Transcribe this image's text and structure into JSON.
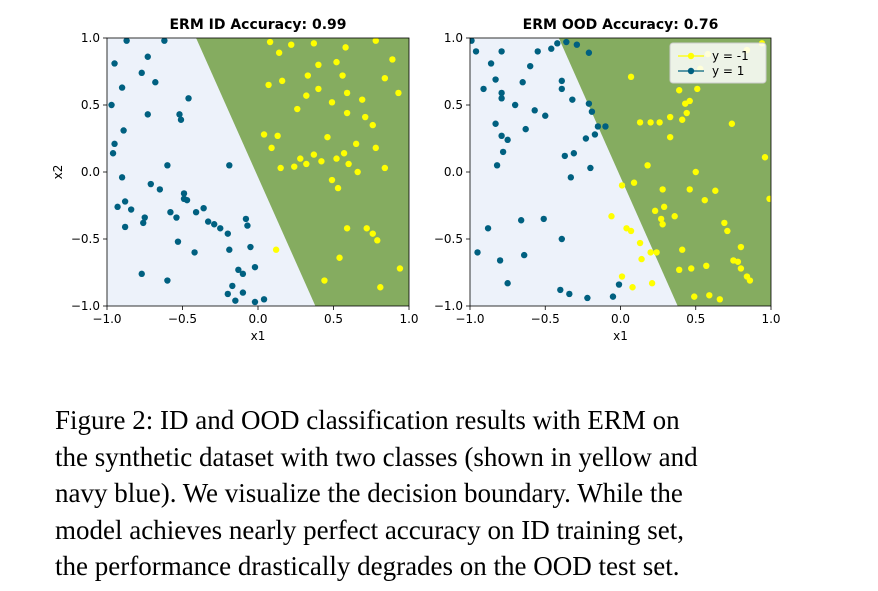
{
  "chart_data": [
    {
      "type": "scatter",
      "title": "ERM ID Accuracy: 0.99",
      "xlabel": "x1",
      "ylabel": "x2",
      "xlim": [
        -1.0,
        1.0
      ],
      "ylim": [
        -1.0,
        1.0
      ],
      "xticks": [
        "−1.0",
        "−0.5",
        "0.0",
        "0.5",
        "1.0"
      ],
      "yticks": [
        "1.0",
        "0.5",
        "0.0",
        "−0.5",
        "−1.0"
      ],
      "region_colors": {
        "y1": "#edf2fa",
        "y_neg1": "#85ac60"
      },
      "boundary": [
        [
          -0.41,
          1.0
        ],
        [
          0.38,
          -1.0
        ]
      ],
      "series": [
        {
          "color": "#ffff00",
          "points": [
            [
              0.08,
              0.97
            ],
            [
              0.22,
              0.95
            ],
            [
              0.37,
              0.96
            ],
            [
              0.58,
              0.93
            ],
            [
              0.78,
              0.98
            ],
            [
              0.14,
              0.89
            ],
            [
              0.4,
              0.8
            ],
            [
              0.52,
              0.82
            ],
            [
              0.56,
              0.72
            ],
            [
              0.84,
              0.7
            ],
            [
              0.93,
              0.59
            ],
            [
              0.89,
              0.84
            ],
            [
              0.07,
              0.65
            ],
            [
              0.16,
              0.68
            ],
            [
              0.33,
              0.72
            ],
            [
              0.4,
              0.62
            ],
            [
              0.59,
              0.59
            ],
            [
              0.69,
              0.54
            ],
            [
              0.32,
              0.57
            ],
            [
              0.49,
              0.52
            ],
            [
              0.26,
              0.47
            ],
            [
              0.59,
              0.44
            ],
            [
              0.71,
              0.41
            ],
            [
              0.76,
              0.35
            ],
            [
              0.04,
              0.28
            ],
            [
              0.13,
              0.27
            ],
            [
              0.46,
              0.26
            ],
            [
              0.65,
              0.21
            ],
            [
              0.78,
              0.18
            ],
            [
              0.09,
              0.18
            ],
            [
              0.28,
              0.1
            ],
            [
              0.37,
              0.13
            ],
            [
              0.57,
              0.14
            ],
            [
              0.15,
              0.03
            ],
            [
              0.24,
              0.04
            ],
            [
              0.32,
              0.06
            ],
            [
              0.42,
              0.08
            ],
            [
              0.52,
              0.1
            ],
            [
              0.6,
              0.06
            ],
            [
              0.66,
              0.0
            ],
            [
              0.49,
              -0.06
            ],
            [
              0.59,
              -0.42
            ],
            [
              0.72,
              -0.42
            ],
            [
              0.79,
              -0.51
            ],
            [
              0.76,
              -0.46
            ],
            [
              0.12,
              -0.58
            ],
            [
              0.54,
              -0.64
            ],
            [
              0.94,
              -0.72
            ],
            [
              0.44,
              -0.81
            ],
            [
              0.81,
              -0.86
            ],
            [
              0.53,
              -0.12
            ],
            [
              0.84,
              0.03
            ]
          ]
        },
        {
          "color": "#006080",
          "points": [
            [
              -0.87,
              0.98
            ],
            [
              -0.62,
              0.98
            ],
            [
              -0.95,
              0.81
            ],
            [
              -0.73,
              0.86
            ],
            [
              -0.77,
              0.74
            ],
            [
              -0.9,
              0.63
            ],
            [
              -0.68,
              0.67
            ],
            [
              -0.73,
              0.43
            ],
            [
              -0.51,
              0.39
            ],
            [
              -0.46,
              0.55
            ],
            [
              -0.52,
              0.43
            ],
            [
              -0.97,
              0.5
            ],
            [
              -0.89,
              0.31
            ],
            [
              -0.95,
              0.21
            ],
            [
              -0.96,
              0.14
            ],
            [
              -0.9,
              -0.04
            ],
            [
              -0.6,
              0.05
            ],
            [
              -0.88,
              -0.22
            ],
            [
              -0.93,
              -0.26
            ],
            [
              -0.84,
              -0.28
            ],
            [
              -0.76,
              -0.38
            ],
            [
              -0.65,
              -0.13
            ],
            [
              -0.71,
              -0.09
            ],
            [
              -0.58,
              -0.3
            ],
            [
              -0.54,
              -0.34
            ],
            [
              -0.49,
              -0.2
            ],
            [
              -0.49,
              -0.16
            ],
            [
              -0.47,
              -0.21
            ],
            [
              -0.41,
              -0.3
            ],
            [
              -0.36,
              -0.27
            ],
            [
              -0.33,
              -0.37
            ],
            [
              -0.29,
              -0.39
            ],
            [
              -0.25,
              -0.42
            ],
            [
              -0.2,
              -0.46
            ],
            [
              -0.08,
              -0.35
            ],
            [
              -0.19,
              -0.58
            ],
            [
              -0.05,
              -0.56
            ],
            [
              -0.02,
              -0.71
            ],
            [
              -0.13,
              -0.73
            ],
            [
              -0.1,
              -0.76
            ],
            [
              -0.17,
              -0.85
            ],
            [
              -0.2,
              -0.91
            ],
            [
              -0.15,
              -0.96
            ],
            [
              -0.02,
              -0.97
            ],
            [
              -0.1,
              -0.9
            ],
            [
              0.04,
              -0.95
            ],
            [
              -0.6,
              -0.81
            ],
            [
              -0.75,
              -0.34
            ],
            [
              -0.53,
              -0.52
            ],
            [
              -0.42,
              -0.6
            ],
            [
              -0.07,
              -0.4
            ],
            [
              -0.19,
              0.05
            ],
            [
              -0.77,
              -0.76
            ],
            [
              -0.88,
              -0.41
            ]
          ]
        }
      ]
    },
    {
      "type": "scatter",
      "title": "ERM OOD Accuracy: 0.76",
      "xlabel": "x1",
      "ylabel": "",
      "xlim": [
        -1.0,
        1.0
      ],
      "ylim": [
        -1.0,
        1.0
      ],
      "xticks": [
        "−1.0",
        "−0.5",
        "0.0",
        "0.5",
        "1.0"
      ],
      "yticks": [
        "1.0",
        "0.5",
        "0.0",
        "−0.5",
        "−1.0"
      ],
      "region_colors": {
        "y1": "#edf2fa",
        "y_neg1": "#85ac60"
      },
      "boundary": [
        [
          -0.41,
          1.0
        ],
        [
          0.38,
          -1.0
        ]
      ],
      "legend": {
        "placement": "top-right",
        "entries": [
          {
            "label": "y = -1",
            "color": "#ffff00"
          },
          {
            "label": "y = 1",
            "color": "#006080"
          }
        ]
      },
      "series": [
        {
          "color": "#ffff00",
          "points": [
            [
              0.01,
              -0.1
            ],
            [
              0.09,
              -0.08
            ],
            [
              -0.06,
              -0.33
            ],
            [
              0.04,
              -0.42
            ],
            [
              0.07,
              -0.44
            ],
            [
              0.01,
              -0.78
            ],
            [
              0.13,
              -0.53
            ],
            [
              0.14,
              -0.65
            ],
            [
              0.08,
              -0.86
            ],
            [
              0.23,
              -0.29
            ],
            [
              0.2,
              -0.6
            ],
            [
              0.21,
              -0.83
            ],
            [
              0.24,
              -0.6
            ],
            [
              0.27,
              -0.35
            ],
            [
              0.29,
              -0.26
            ],
            [
              0.28,
              -0.39
            ],
            [
              0.36,
              -0.33
            ],
            [
              0.41,
              -0.58
            ],
            [
              0.47,
              -0.72
            ],
            [
              0.39,
              -0.73
            ],
            [
              0.49,
              -0.93
            ],
            [
              0.59,
              -0.92
            ],
            [
              0.66,
              -0.95
            ],
            [
              0.71,
              -0.44
            ],
            [
              0.75,
              -0.66
            ],
            [
              0.78,
              -0.67
            ],
            [
              0.8,
              -0.72
            ],
            [
              0.84,
              -0.78
            ],
            [
              0.86,
              -0.81
            ],
            [
              0.57,
              -0.7
            ],
            [
              0.69,
              -0.38
            ],
            [
              0.28,
              -0.13
            ],
            [
              0.13,
              0.37
            ],
            [
              0.2,
              0.37
            ],
            [
              0.26,
              0.37
            ],
            [
              0.18,
              0.05
            ],
            [
              0.33,
              0.26
            ],
            [
              0.5,
              -0.0
            ],
            [
              0.96,
              0.11
            ],
            [
              0.74,
              0.36
            ],
            [
              0.41,
              0.39
            ],
            [
              0.39,
              0.61
            ],
            [
              0.44,
              0.44
            ],
            [
              0.33,
              0.41
            ],
            [
              0.43,
              0.51
            ],
            [
              0.46,
              0.53
            ],
            [
              0.51,
              0.62
            ],
            [
              0.53,
              0.77
            ],
            [
              0.58,
              0.88
            ],
            [
              0.84,
              0.91
            ],
            [
              0.94,
              0.96
            ],
            [
              0.07,
              0.71
            ],
            [
              0.46,
              -0.13
            ],
            [
              0.56,
              -0.21
            ],
            [
              0.63,
              -0.14
            ],
            [
              0.8,
              -0.56
            ],
            [
              0.99,
              -0.2
            ]
          ]
        },
        {
          "color": "#006080",
          "points": [
            [
              -0.96,
              0.9
            ],
            [
              -0.86,
              0.81
            ],
            [
              -0.83,
              0.69
            ],
            [
              -0.79,
              0.59
            ],
            [
              -0.79,
              0.55
            ],
            [
              -0.83,
              0.36
            ],
            [
              -0.79,
              0.27
            ],
            [
              -0.75,
              0.24
            ],
            [
              -0.78,
              0.15
            ],
            [
              -0.82,
              0.05
            ],
            [
              -0.6,
              0.79
            ],
            [
              -0.55,
              0.9
            ],
            [
              -0.42,
              0.96
            ],
            [
              -0.46,
              0.92
            ],
            [
              -0.36,
              0.97
            ],
            [
              -0.29,
              0.95
            ],
            [
              -0.21,
              0.89
            ],
            [
              -0.21,
              0.51
            ],
            [
              -0.15,
              0.34
            ],
            [
              -0.1,
              0.34
            ],
            [
              -0.17,
              0.28
            ],
            [
              -0.23,
              0.25
            ],
            [
              -0.37,
              0.12
            ],
            [
              -0.31,
              0.14
            ],
            [
              -0.33,
              -0.04
            ],
            [
              -0.2,
              0.03
            ],
            [
              -0.66,
              -0.36
            ],
            [
              -0.64,
              -0.62
            ],
            [
              -0.51,
              -0.35
            ],
            [
              -0.39,
              -0.5
            ],
            [
              -0.4,
              -0.88
            ],
            [
              -0.34,
              -0.91
            ],
            [
              -0.22,
              -0.94
            ],
            [
              -0.05,
              -0.93
            ],
            [
              -0.01,
              -0.84
            ],
            [
              -0.8,
              -0.66
            ],
            [
              -0.75,
              -0.83
            ],
            [
              -0.95,
              -0.6
            ],
            [
              -0.88,
              -0.42
            ],
            [
              -0.91,
              0.62
            ],
            [
              -0.99,
              0.98
            ],
            [
              -0.79,
              0.9
            ],
            [
              -0.65,
              0.67
            ],
            [
              -0.63,
              0.32
            ],
            [
              -0.39,
              0.68
            ],
            [
              -0.39,
              0.62
            ],
            [
              -0.32,
              0.54
            ],
            [
              -0.5,
              0.42
            ],
            [
              -0.57,
              0.46
            ],
            [
              -0.7,
              0.5
            ],
            [
              -0.19,
              0.45
            ]
          ]
        }
      ]
    }
  ],
  "caption": {
    "lines": [
      "Figure 2: ID and OOD classification results with ERM on",
      "the synthetic dataset with two classes (shown in yellow and",
      "navy blue). We visualize the decision boundary. While the",
      "model achieves nearly perfect accuracy on ID training set,",
      "the performance drastically degrades on the OOD test set."
    ]
  }
}
